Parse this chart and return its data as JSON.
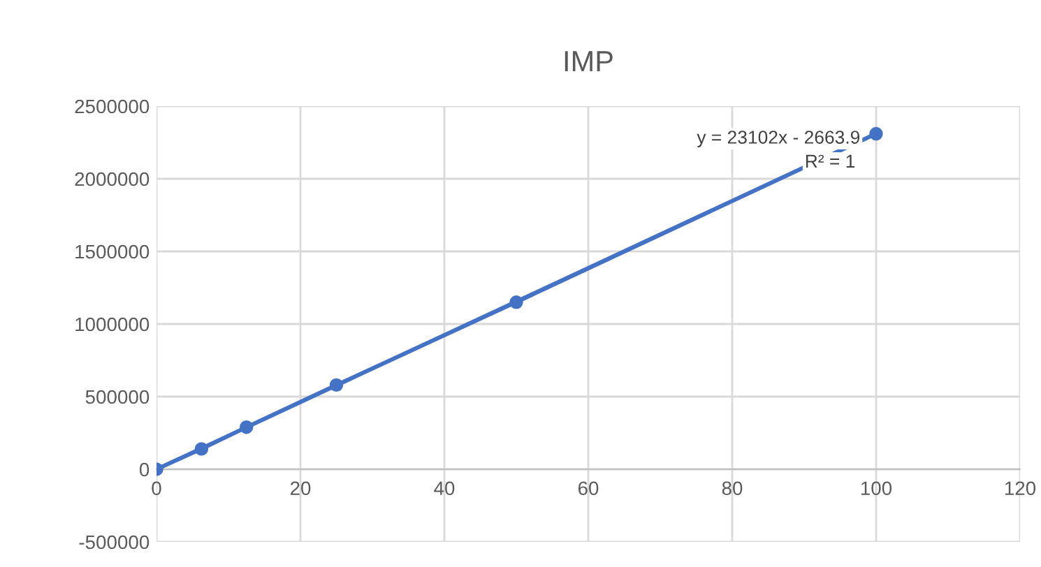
{
  "chart_data": {
    "type": "line",
    "title": "IMP",
    "series": [
      {
        "color": "#4472c4",
        "x": [
          0,
          6.25,
          12.5,
          25,
          50,
          100
        ],
        "values": [
          0,
          140000,
          290000,
          580000,
          1150000,
          2310000
        ],
        "marker": "circle"
      },
      {
        "type": "line",
        "color": "#4472c4",
        "x": [
          0,
          100
        ],
        "values": [
          0,
          2310000
        ],
        "marker": "none"
      }
    ],
    "annotations": [
      "y = 23102x - 2663.9",
      "R² = 1"
    ],
    "xlim": [
      0,
      120
    ],
    "xticks": [
      0,
      20,
      40,
      60,
      80,
      100,
      120
    ],
    "ylim": [
      -500000,
      2500000
    ],
    "yticks": [
      -500000,
      0,
      500000,
      1000000,
      1500000,
      2000000,
      2500000
    ],
    "grid": true,
    "legend": false,
    "line_style": "solid"
  }
}
